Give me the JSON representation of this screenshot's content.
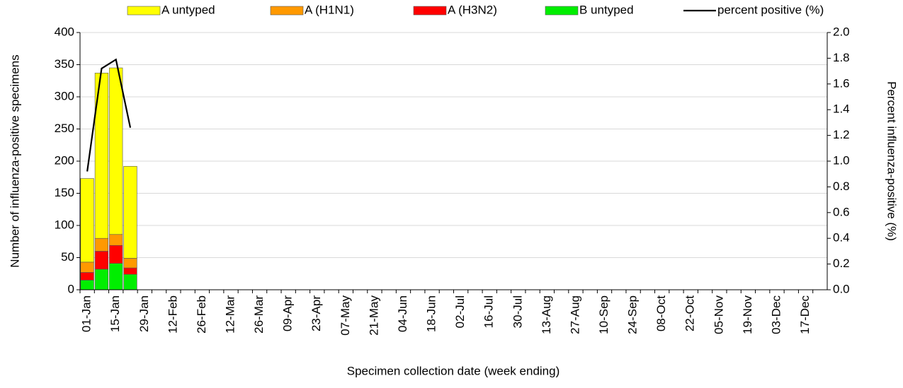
{
  "chart_data": {
    "type": "stacked-bar-line",
    "x_label": "Specimen collection date (week ending)",
    "y_label": "Number of influenza-positive specimens",
    "y2_label": "Percent influenza-positive (%)",
    "categories": [
      "01-Jan",
      null,
      "15-Jan",
      null,
      "29-Jan",
      null,
      "12-Feb",
      null,
      "26-Feb",
      null,
      "12-Mar",
      null,
      "26-Mar",
      null,
      "09-Apr",
      null,
      "23-Apr",
      null,
      "07-May",
      null,
      "21-May",
      null,
      "04-Jun",
      null,
      "18-Jun",
      null,
      "02-Jul",
      null,
      "16-Jul",
      null,
      "30-Jul",
      null,
      "13-Aug",
      null,
      "27-Aug",
      null,
      "10-Sep",
      null,
      "24-Sep",
      null,
      "08-Oct",
      null,
      "22-Oct",
      null,
      "05-Nov",
      null,
      "19-Nov",
      null,
      "03-Dec",
      null,
      "17-Dec",
      null
    ],
    "series": [
      {
        "name": "A untyped",
        "color": "#ffff00",
        "values": [
          130,
          257,
          259,
          143,
          null,
          null,
          null,
          null,
          null,
          null,
          null,
          null,
          null,
          null,
          null,
          null,
          null,
          null,
          null,
          null,
          null,
          null,
          null,
          null,
          null,
          null,
          null,
          null,
          null,
          null,
          null,
          null,
          null,
          null,
          null,
          null,
          null,
          null,
          null,
          null,
          null,
          null,
          null,
          null,
          null,
          null,
          null,
          null,
          null,
          null,
          null,
          null
        ]
      },
      {
        "name": "A (H1N1)",
        "color": "#ff9900",
        "values": [
          16,
          20,
          17,
          15,
          null,
          null,
          null,
          null,
          null,
          null,
          null,
          null,
          null,
          null,
          null,
          null,
          null,
          null,
          null,
          null,
          null,
          null,
          null,
          null,
          null,
          null,
          null,
          null,
          null,
          null,
          null,
          null,
          null,
          null,
          null,
          null,
          null,
          null,
          null,
          null,
          null,
          null,
          null,
          null,
          null,
          null,
          null,
          null,
          null,
          null,
          null,
          null
        ]
      },
      {
        "name": "A (H3N2)",
        "color": "#ff0000",
        "values": [
          12,
          28,
          28,
          10,
          null,
          null,
          null,
          null,
          null,
          null,
          null,
          null,
          null,
          null,
          null,
          null,
          null,
          null,
          null,
          null,
          null,
          null,
          null,
          null,
          null,
          null,
          null,
          null,
          null,
          null,
          null,
          null,
          null,
          null,
          null,
          null,
          null,
          null,
          null,
          null,
          null,
          null,
          null,
          null,
          null,
          null,
          null,
          null,
          null,
          null,
          null,
          null
        ]
      },
      {
        "name": "B untyped",
        "color": "#00ee00",
        "values": [
          15,
          32,
          41,
          24,
          null,
          null,
          null,
          null,
          null,
          null,
          null,
          null,
          null,
          null,
          null,
          null,
          null,
          null,
          null,
          null,
          null,
          null,
          null,
          null,
          null,
          null,
          null,
          null,
          null,
          null,
          null,
          null,
          null,
          null,
          null,
          null,
          null,
          null,
          null,
          null,
          null,
          null,
          null,
          null,
          null,
          null,
          null,
          null,
          null,
          null,
          null,
          null
        ]
      },
      {
        "name": "percent positive (%)",
        "color": "#000000",
        "axis": "y2",
        "kind": "line",
        "values": [
          0.92,
          1.72,
          1.79,
          1.26,
          null,
          null,
          null,
          null,
          null,
          null,
          null,
          null,
          null,
          null,
          null,
          null,
          null,
          null,
          null,
          null,
          null,
          null,
          null,
          null,
          null,
          null,
          null,
          null,
          null,
          null,
          null,
          null,
          null,
          null,
          null,
          null,
          null,
          null,
          null,
          null,
          null,
          null,
          null,
          null,
          null,
          null,
          null,
          null,
          null,
          null,
          null,
          null
        ]
      }
    ],
    "ylim": [
      0,
      400
    ],
    "yticks": [
      0,
      50,
      100,
      150,
      200,
      250,
      300,
      350,
      400
    ],
    "y2lim": [
      0,
      2
    ],
    "y2ticks": [
      {
        "value": 0,
        "label": "0.0"
      },
      0.2,
      0.4,
      0.6,
      0.8,
      {
        "value": 1,
        "label": "1.0"
      },
      1.2,
      1.4,
      1.6,
      1.8,
      {
        "value": 2,
        "label": "2.0"
      }
    ],
    "grid": true,
    "legend": "top"
  }
}
